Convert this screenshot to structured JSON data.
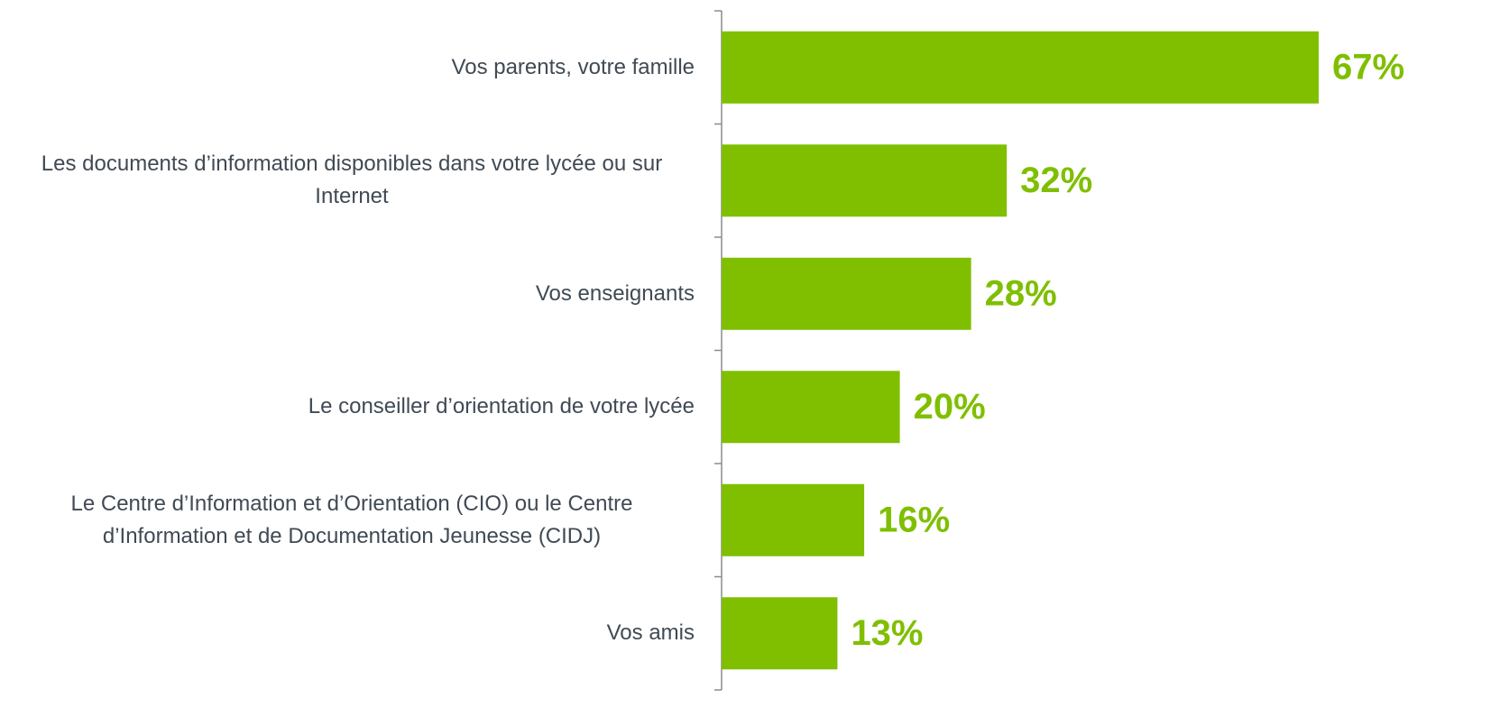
{
  "chart_data": {
    "type": "bar",
    "orientation": "horizontal",
    "categories": [
      "Vos parents, votre famille",
      "Les documents d’information disponibles dans votre lycée ou sur Internet",
      "Vos enseignants",
      "Le conseiller d’orientation de votre lycée",
      "Le Centre d’Information et d’Orientation (CIO) ou le Centre d’Information et de Documentation Jeunesse (CIDJ)",
      "Vos amis"
    ],
    "values": [
      67,
      32,
      28,
      20,
      16,
      13
    ],
    "value_labels": [
      "67%",
      "32%",
      "28%",
      "20%",
      "16%",
      "13%"
    ],
    "color": "#7fbf00"
  }
}
